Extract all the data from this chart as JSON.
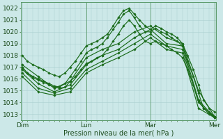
{
  "xlabel": "Pression niveau de la mer( hPa )",
  "ylim": [
    1012.5,
    1022.5
  ],
  "yticks": [
    1013,
    1014,
    1015,
    1016,
    1017,
    1018,
    1019,
    1020,
    1021,
    1022
  ],
  "bg_color": "#cce8e8",
  "grid_color": "#aacfcf",
  "line_color": "#1a6b1a",
  "marker": "D",
  "markersize": 1.8,
  "linewidth": 0.85,
  "xtick_labels": [
    "Dim",
    "Lun",
    "Mar",
    "Mer"
  ],
  "series": [
    {
      "x": [
        0.0,
        0.08,
        0.17,
        0.25,
        0.33,
        0.42,
        0.5,
        0.58,
        0.67,
        0.75,
        0.83,
        0.92,
        1.0,
        1.08,
        1.17,
        1.25,
        1.33,
        1.42,
        1.5,
        1.58,
        1.67,
        1.75,
        1.83,
        1.92,
        2.0,
        2.08,
        2.17,
        2.25,
        2.33,
        2.42,
        2.5,
        2.58,
        2.67,
        2.75,
        2.83,
        2.92,
        3.0
      ],
      "y": [
        1018.0,
        1017.5,
        1017.2,
        1017.0,
        1016.8,
        1016.5,
        1016.3,
        1016.2,
        1016.5,
        1017.0,
        1017.5,
        1018.2,
        1018.8,
        1019.0,
        1019.2,
        1019.5,
        1019.8,
        1020.5,
        1021.2,
        1021.8,
        1022.0,
        1021.5,
        1021.0,
        1020.5,
        1020.2,
        1020.5,
        1020.3,
        1020.0,
        1019.8,
        1019.5,
        1019.0,
        1018.0,
        1016.8,
        1015.5,
        1014.2,
        1013.5,
        1013.2
      ]
    },
    {
      "x": [
        0.0,
        0.08,
        0.17,
        0.25,
        0.33,
        0.42,
        0.5,
        0.58,
        0.67,
        0.75,
        0.83,
        0.92,
        1.0,
        1.08,
        1.17,
        1.25,
        1.33,
        1.42,
        1.5,
        1.58,
        1.67,
        1.75,
        1.83,
        1.92,
        2.0,
        2.08,
        2.17,
        2.25,
        2.33,
        2.42,
        2.5,
        2.58,
        2.67,
        2.75,
        2.83,
        2.92,
        3.0
      ],
      "y": [
        1017.0,
        1016.5,
        1016.2,
        1016.0,
        1015.8,
        1015.6,
        1015.4,
        1015.3,
        1015.6,
        1016.2,
        1016.8,
        1017.5,
        1018.2,
        1018.5,
        1018.7,
        1019.0,
        1019.5,
        1020.2,
        1020.8,
        1021.5,
        1021.8,
        1021.2,
        1020.5,
        1020.0,
        1020.0,
        1020.3,
        1020.0,
        1019.8,
        1019.5,
        1019.2,
        1018.8,
        1017.5,
        1016.2,
        1014.8,
        1013.5,
        1013.0,
        1012.8
      ]
    },
    {
      "x": [
        0.0,
        0.08,
        0.17,
        0.25,
        0.33,
        0.42,
        0.5,
        0.58,
        0.67,
        0.75,
        0.83,
        0.92,
        1.0,
        1.08,
        1.17,
        1.25,
        1.33,
        1.42,
        1.5,
        1.58,
        1.67,
        1.75,
        1.83,
        1.92,
        2.0,
        2.08,
        2.17,
        2.25,
        2.33,
        2.42,
        2.5,
        2.58,
        2.67,
        2.75,
        2.83,
        2.92,
        3.0
      ],
      "y": [
        1017.0,
        1016.5,
        1016.1,
        1015.9,
        1015.7,
        1015.5,
        1015.3,
        1015.2,
        1015.3,
        1015.8,
        1016.2,
        1016.8,
        1017.3,
        1017.5,
        1017.8,
        1018.0,
        1018.5,
        1019.2,
        1019.8,
        1020.5,
        1021.0,
        1020.5,
        1019.8,
        1019.2,
        1019.0,
        1019.2,
        1019.0,
        1018.8,
        1018.5,
        1018.2,
        1017.8,
        1016.8,
        1015.5,
        1014.2,
        1013.5,
        1013.2,
        1012.8
      ]
    },
    {
      "x": [
        0.0,
        0.25,
        0.5,
        0.75,
        1.0,
        1.25,
        1.5,
        1.75,
        2.0,
        2.25,
        2.5,
        2.75,
        3.0
      ],
      "y": [
        1017.2,
        1016.2,
        1015.2,
        1015.8,
        1017.8,
        1018.5,
        1019.0,
        1020.0,
        1020.5,
        1019.5,
        1019.0,
        1015.0,
        1012.8
      ]
    },
    {
      "x": [
        0.0,
        0.25,
        0.5,
        0.75,
        1.0,
        1.25,
        1.5,
        1.75,
        2.0,
        2.25,
        2.5,
        2.75,
        3.0
      ],
      "y": [
        1016.8,
        1015.6,
        1014.9,
        1015.5,
        1017.2,
        1018.0,
        1018.5,
        1019.5,
        1020.2,
        1019.0,
        1018.8,
        1014.2,
        1012.7
      ]
    },
    {
      "x": [
        0.0,
        0.25,
        0.5,
        0.75,
        1.0,
        1.25,
        1.5,
        1.75,
        2.0,
        2.25,
        2.5,
        2.75,
        3.0
      ],
      "y": [
        1016.5,
        1015.2,
        1014.8,
        1015.2,
        1016.8,
        1017.5,
        1018.2,
        1019.0,
        1019.8,
        1018.8,
        1018.5,
        1014.0,
        1012.7
      ]
    },
    {
      "x": [
        0.0,
        0.25,
        0.5,
        0.75,
        1.0,
        1.25,
        1.5,
        1.75,
        2.0,
        2.25,
        2.5,
        2.75,
        3.0
      ],
      "y": [
        1016.2,
        1014.9,
        1014.6,
        1014.9,
        1016.5,
        1017.2,
        1017.8,
        1018.5,
        1019.5,
        1018.5,
        1018.2,
        1013.5,
        1012.7
      ]
    }
  ]
}
